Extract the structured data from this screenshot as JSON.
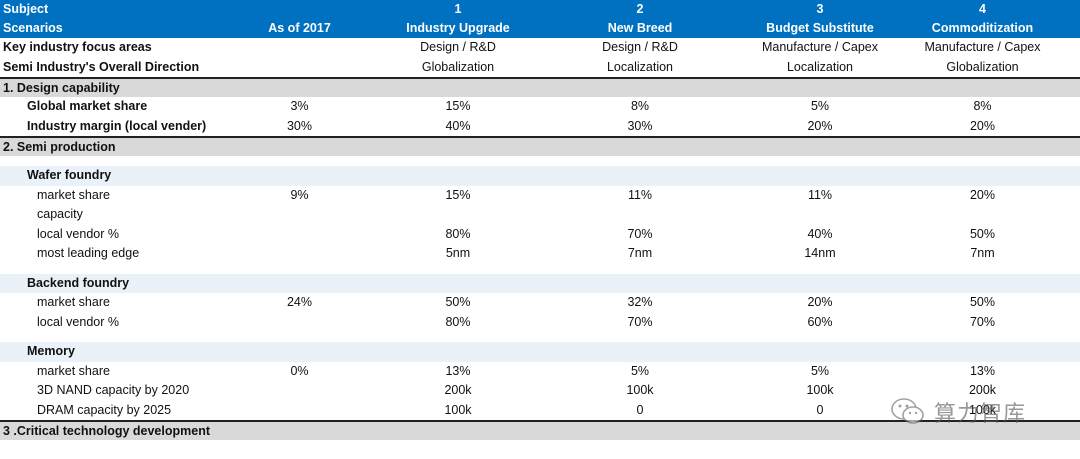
{
  "header": {
    "subject_label": "Subject",
    "scenarios_label": "Scenarios",
    "as_of": "As of 2017",
    "scenarios": [
      {
        "num": "1",
        "name": "Industry Upgrade"
      },
      {
        "num": "2",
        "name": "New Breed"
      },
      {
        "num": "3",
        "name": "Budget Substitute"
      },
      {
        "num": "4",
        "name": "Commoditization"
      }
    ]
  },
  "focus": {
    "label": "Key industry focus areas",
    "values": [
      "Design / R&D",
      "Design / R&D",
      "Manufacture / Capex",
      "Manufacture / Capex"
    ]
  },
  "direction": {
    "label": "Semi Industry's Overall Direction",
    "values": [
      "Globalization",
      "Localization",
      "Localization",
      "Globalization"
    ]
  },
  "design": {
    "title": "1. Design capability",
    "rows": [
      {
        "label": "Global market share",
        "base": "3%",
        "values": [
          "15%",
          "8%",
          "5%",
          "8%"
        ]
      },
      {
        "label": "Industry margin (local vender)",
        "base": "30%",
        "values": [
          "40%",
          "30%",
          "20%",
          "20%"
        ]
      }
    ]
  },
  "production": {
    "title": "2. Semi production",
    "wafer": {
      "title": "Wafer foundry",
      "rows": [
        {
          "label": "market share",
          "base": "9%",
          "values": [
            "15%",
            "11%",
            "11%",
            "20%"
          ]
        },
        {
          "label": "capacity",
          "base": "",
          "values": [
            "",
            "",
            "",
            ""
          ]
        },
        {
          "label": "local vendor %",
          "base": "",
          "values": [
            "80%",
            "70%",
            "40%",
            "50%"
          ]
        },
        {
          "label": "most leading edge",
          "base": "",
          "values": [
            "5nm",
            "7nm",
            "14nm",
            "7nm"
          ]
        }
      ]
    },
    "backend": {
      "title": "Backend foundry",
      "rows": [
        {
          "label": "market share",
          "base": "24%",
          "values": [
            "50%",
            "32%",
            "20%",
            "50%"
          ]
        },
        {
          "label": "local vendor %",
          "base": "",
          "values": [
            "80%",
            "70%",
            "60%",
            "70%"
          ]
        }
      ]
    },
    "memory": {
      "title": "Memory",
      "rows": [
        {
          "label": "market share",
          "base": "0%",
          "values": [
            "13%",
            "5%",
            "5%",
            "13%"
          ]
        },
        {
          "label": "3D NAND capacity by 2020",
          "base": "",
          "values": [
            "200k",
            "100k",
            "100k",
            "200k"
          ]
        },
        {
          "label": "DRAM capacity by 2025",
          "base": "",
          "values": [
            "100k",
            "0",
            "0",
            "100k"
          ]
        }
      ]
    }
  },
  "critical": {
    "title": "3 .Critical technology development"
  },
  "watermark": {
    "text": "算力智库",
    "icon": "wechat-icon"
  }
}
